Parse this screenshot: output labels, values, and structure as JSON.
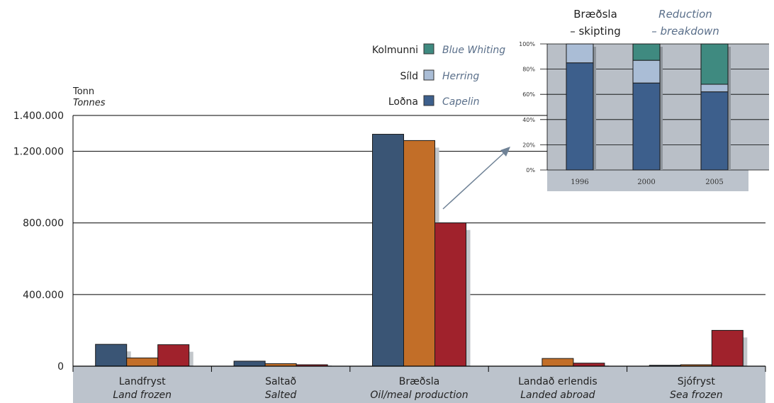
{
  "main_chart": {
    "unit_label": "Tonn",
    "unit_label_en": "Tonnes",
    "legend": [
      {
        "name": "Kolmunni",
        "name_en": "Blue Whiting",
        "color": "#3f8a80"
      },
      {
        "name": "Síld",
        "name_en": "Herring",
        "color": "#aabdd6"
      },
      {
        "name": "Loðna",
        "name_en": "Capelin",
        "color": "#3d5f8c"
      }
    ],
    "y_ticks": [
      "0",
      "400.000",
      "800.000",
      "1.200.000",
      "1.400.000"
    ],
    "categories": [
      {
        "name": "Landfryst",
        "name_en": "Land frozen"
      },
      {
        "name": "Saltað",
        "name_en": "Salted"
      },
      {
        "name": "Bræðsla",
        "name_en": "Oil/meal production"
      },
      {
        "name": "Landað erlendis",
        "name_en": "Landed abroad"
      },
      {
        "name": "Sjófryst",
        "name_en": "Sea frozen"
      }
    ]
  },
  "inset": {
    "title": "Bræðsla",
    "title_line2": "– skipting",
    "title_en": "Reduction",
    "title_en_line2": "– breakdown",
    "pct_ticks": [
      "0%",
      "20%",
      "40%",
      "60%",
      "80%",
      "100%"
    ],
    "years": [
      "1996",
      "2000",
      "2005"
    ]
  },
  "chart_data": [
    {
      "type": "bar",
      "ylabel": "Tonn / Tonnes",
      "ylim": [
        0,
        1400000
      ],
      "y_ticks": [
        0,
        400000,
        800000,
        1200000,
        1400000
      ],
      "grid": true,
      "categories": [
        "Landfryst",
        "Saltað",
        "Bræðsla",
        "Landað erlendis",
        "Sjófryst"
      ],
      "series": [
        {
          "values": [
            122000,
            28000,
            1295000,
            0,
            5000
          ],
          "color": "#3a5575"
        },
        {
          "values": [
            46000,
            14000,
            1260000,
            43000,
            8000
          ],
          "color": "#c26e28"
        },
        {
          "values": [
            120000,
            8000,
            800000,
            17000,
            200000
          ],
          "color": "#a0222c"
        }
      ]
    },
    {
      "type": "bar",
      "stacked": true,
      "title": "Bræðsla – skipting / Reduction – breakdown",
      "ylim": [
        0,
        100
      ],
      "categories": [
        "1996",
        "2000",
        "2005"
      ],
      "series": [
        {
          "name": "Loðna",
          "values": [
            85,
            69,
            62
          ],
          "color": "#3d5f8c"
        },
        {
          "name": "Síld",
          "values": [
            15,
            18,
            6
          ],
          "color": "#aabdd6"
        },
        {
          "name": "Kolmunni",
          "values": [
            0,
            13,
            32
          ],
          "color": "#3f8a80"
        }
      ]
    }
  ]
}
